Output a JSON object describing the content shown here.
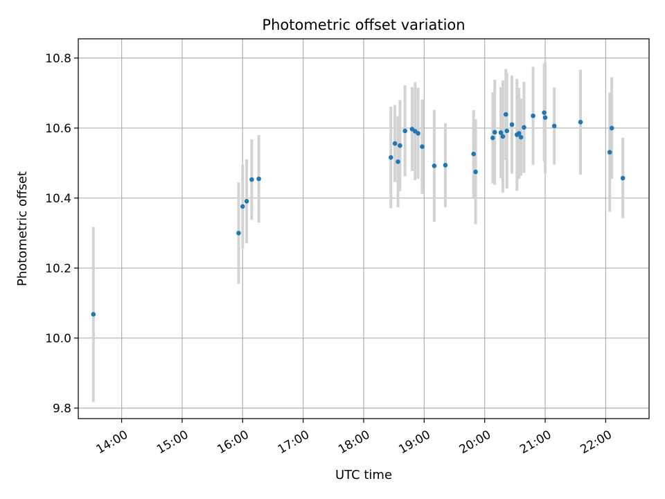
{
  "chart_data": {
    "type": "scatter",
    "title": "Photometric offset variation",
    "xlabel": "UTC time",
    "ylabel": "Photometric offset",
    "x_unit": "time of day (UTC)",
    "xlim": [
      "13:17",
      "22:43"
    ],
    "ylim": [
      9.77,
      10.855
    ],
    "x_ticks": [
      "14:00",
      "15:00",
      "16:00",
      "17:00",
      "18:00",
      "19:00",
      "20:00",
      "21:00",
      "22:00"
    ],
    "y_ticks": [
      "9.8",
      "10.0",
      "10.2",
      "10.4",
      "10.6",
      "10.8"
    ],
    "grid": true,
    "error_bar_color": "#d3d3d3",
    "point_color": "#1f77b4",
    "points": [
      {
        "x": "13:32",
        "y": 10.068,
        "err": 0.25
      },
      {
        "x": "15:56",
        "y": 10.3,
        "err": 0.145
      },
      {
        "x": "16:00",
        "y": 10.376,
        "err": 0.12
      },
      {
        "x": "16:04",
        "y": 10.391,
        "err": 0.12
      },
      {
        "x": "16:09",
        "y": 10.453,
        "err": 0.115
      },
      {
        "x": "16:16",
        "y": 10.455,
        "err": 0.125
      },
      {
        "x": "18:27",
        "y": 10.516,
        "err": 0.145
      },
      {
        "x": "18:31",
        "y": 10.556,
        "err": 0.11
      },
      {
        "x": "18:34",
        "y": 10.504,
        "err": 0.13
      },
      {
        "x": "18:36",
        "y": 10.55,
        "err": 0.13
      },
      {
        "x": "18:41",
        "y": 10.592,
        "err": 0.13
      },
      {
        "x": "18:48",
        "y": 10.597,
        "err": 0.12
      },
      {
        "x": "18:51",
        "y": 10.591,
        "err": 0.14
      },
      {
        "x": "18:54",
        "y": 10.585,
        "err": 0.13
      },
      {
        "x": "18:58",
        "y": 10.547,
        "err": 0.135
      },
      {
        "x": "19:10",
        "y": 10.492,
        "err": 0.16
      },
      {
        "x": "19:21",
        "y": 10.494,
        "err": 0.12
      },
      {
        "x": "19:49",
        "y": 10.526,
        "err": 0.125
      },
      {
        "x": "19:51",
        "y": 10.475,
        "err": 0.15
      },
      {
        "x": "20:08",
        "y": 10.572,
        "err": 0.13
      },
      {
        "x": "20:10",
        "y": 10.588,
        "err": 0.15
      },
      {
        "x": "20:16",
        "y": 10.587,
        "err": 0.13
      },
      {
        "x": "20:18",
        "y": 10.576,
        "err": 0.16
      },
      {
        "x": "20:21",
        "y": 10.639,
        "err": 0.13
      },
      {
        "x": "20:22",
        "y": 10.592,
        "err": 0.165
      },
      {
        "x": "20:27",
        "y": 10.61,
        "err": 0.14
      },
      {
        "x": "20:32",
        "y": 10.581,
        "err": 0.16
      },
      {
        "x": "20:34",
        "y": 10.585,
        "err": 0.13
      },
      {
        "x": "20:36",
        "y": 10.574,
        "err": 0.11
      },
      {
        "x": "20:39",
        "y": 10.602,
        "err": 0.13
      },
      {
        "x": "20:48",
        "y": 10.635,
        "err": 0.14
      },
      {
        "x": "20:59",
        "y": 10.644,
        "err": 0.14
      },
      {
        "x": "21:00",
        "y": 10.63,
        "err": 0.16
      },
      {
        "x": "21:09",
        "y": 10.606,
        "err": 0.11
      },
      {
        "x": "21:35",
        "y": 10.617,
        "err": 0.15
      },
      {
        "x": "22:04",
        "y": 10.531,
        "err": 0.17
      },
      {
        "x": "22:06",
        "y": 10.6,
        "err": 0.145
      },
      {
        "x": "22:17",
        "y": 10.457,
        "err": 0.115
      }
    ]
  }
}
